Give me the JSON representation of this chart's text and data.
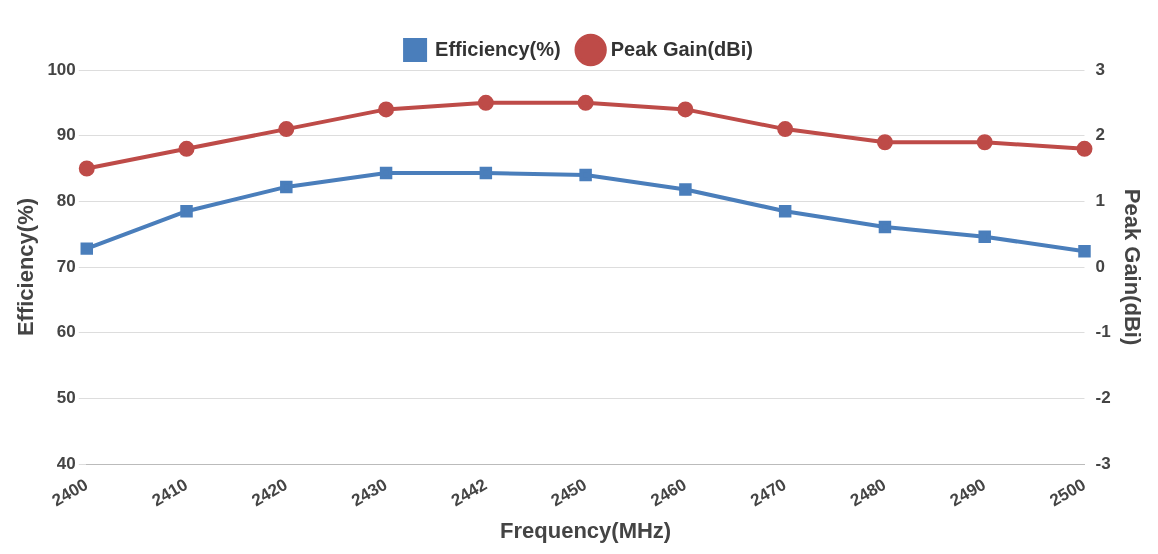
{
  "chart_data": {
    "type": "line",
    "xlabel": "Frequency(MHz)",
    "ylabel": "Efficiency(%)",
    "y2label": "Peak Gain(dBi)",
    "categories": [
      "2400",
      "2410",
      "2420",
      "2430",
      "2442",
      "2450",
      "2460",
      "2470",
      "2480",
      "2490",
      "2500"
    ],
    "series": [
      {
        "name": "Efficiency(%)",
        "color": "#4a7ebb",
        "marker": "square",
        "values": [
          72.8,
          78.5,
          82.2,
          84.3,
          84.3,
          84.0,
          81.8,
          78.5,
          76.1,
          74.6,
          72.4
        ]
      },
      {
        "name": "Peak Gain(dBi)",
        "color": "#be4b48",
        "marker": "circle",
        "axis": "y2",
        "values": [
          1.5,
          1.8,
          2.1,
          2.4,
          2.5,
          2.5,
          2.4,
          2.1,
          1.9,
          1.9,
          1.8
        ]
      }
    ],
    "ylim": [
      40,
      100
    ],
    "yticks": [
      40,
      50,
      60,
      70,
      80,
      90,
      100
    ],
    "y2lim": [
      -3,
      3
    ],
    "y2ticks": [
      -3,
      -2,
      -1,
      0,
      1,
      2,
      3
    ],
    "grid": "y",
    "legend": "top"
  }
}
